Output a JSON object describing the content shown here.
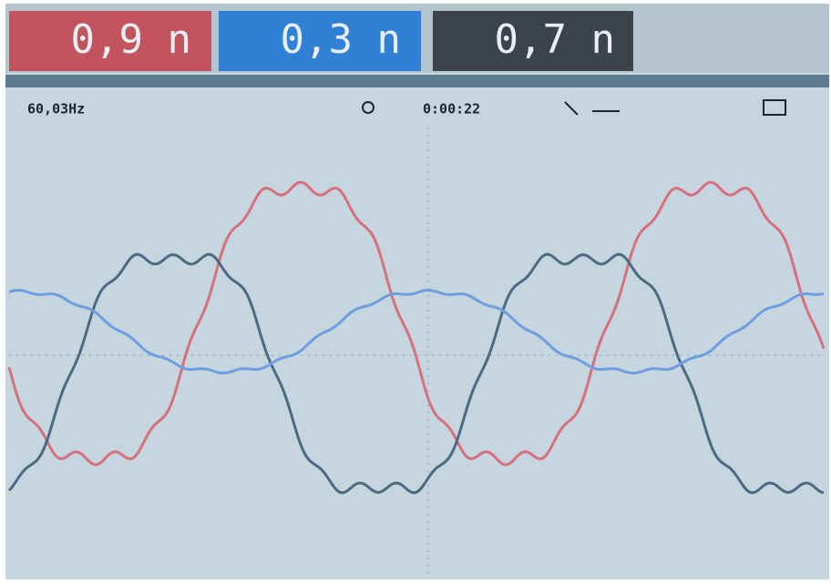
{
  "readings": [
    {
      "value": "0,9 n"
    },
    {
      "value": "0,3 n"
    },
    {
      "value": "0,7 n"
    }
  ],
  "status": {
    "frequency": "60,03Hz",
    "time": "0:00:22"
  }
}
